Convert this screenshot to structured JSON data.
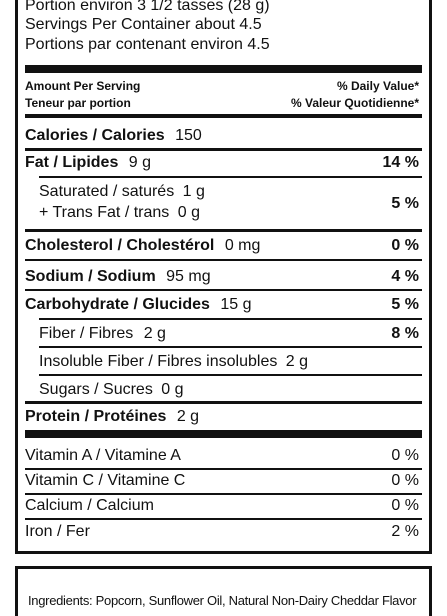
{
  "serving": {
    "portion_fr": "Portion environ 3 1/2 tasses (28 g)",
    "servings_en": "Servings Per Container about 4.5",
    "servings_fr": "Portions par contenant environ 4.5"
  },
  "header": {
    "amount_en": "Amount Per Serving",
    "amount_fr": "Teneur par portion",
    "dv_en": "% Daily Value*",
    "dv_fr": "% Valeur Quotidienne*"
  },
  "calories": {
    "label": "Calories / Calories",
    "value": "150"
  },
  "nutrients": [
    {
      "label": "Fat / Lipides",
      "amount": "9 g",
      "dv": "14 %"
    },
    {
      "label1": "Saturated / saturés",
      "amount1": "1 g",
      "label2": "+ Trans Fat / trans",
      "amount2": "0 g",
      "dv": "5 %"
    },
    {
      "label": "Cholesterol / Cholestérol",
      "amount": "0 mg",
      "dv": "0 %"
    },
    {
      "label": "Sodium / Sodium",
      "amount": "95 mg",
      "dv": "4 %"
    },
    {
      "label": "Carbohydrate / Glucides",
      "amount": "15 g",
      "dv": "5 %"
    },
    {
      "label": "Fiber / Fibres",
      "amount": "2 g",
      "dv": "8 %"
    },
    {
      "label": "Insoluble Fiber / Fibres insolubles",
      "amount": "2 g"
    },
    {
      "label": "Sugars / Sucres",
      "amount": "0 g"
    },
    {
      "label": "Protein / Protéines",
      "amount": "2 g"
    }
  ],
  "vitamins": [
    {
      "label": "Vitamin A / Vitamine A",
      "dv": "0 %"
    },
    {
      "label": "Vitamin C / Vitamine C",
      "dv": "0 %"
    },
    {
      "label": "Calcium / Calcium",
      "dv": "0 %"
    },
    {
      "label": "Iron / Fer",
      "dv": "2 %"
    }
  ],
  "ingredients": "Ingredients: Popcorn, Sunflower Oil, Natural Non-Dairy Cheddar Flavor"
}
